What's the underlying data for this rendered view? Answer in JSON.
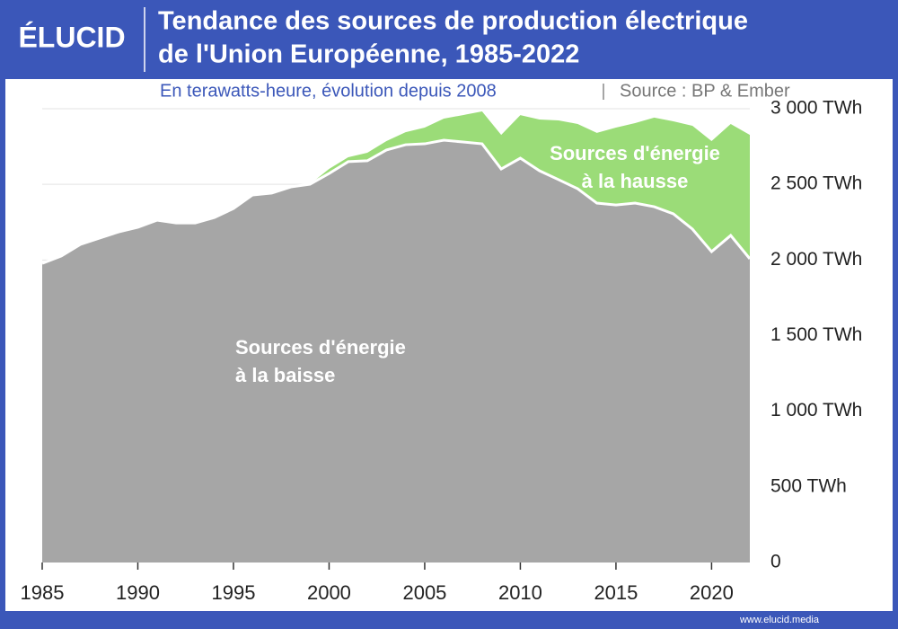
{
  "logo": "ÉLUCID",
  "footer": "www.elucid.media",
  "chart_data": {
    "type": "stacked-area",
    "title": [
      "Tendance des sources de production électrique",
      "de l'Union Européenne, 1985-2022"
    ],
    "subtitle": "En terawatts-heure, évolution depuis 2008",
    "source": "Source : BP & Ember",
    "annotations": [
      {
        "lines": [
          "Sources d'énergie",
          "à la hausse"
        ]
      },
      {
        "lines": [
          "Sources d'énergie",
          "à la baisse"
        ]
      }
    ],
    "x": [
      1985,
      1986,
      1987,
      1988,
      1989,
      1990,
      1991,
      1992,
      1993,
      1994,
      1995,
      1996,
      1997,
      1998,
      1999,
      2000,
      2001,
      2002,
      2003,
      2004,
      2005,
      2006,
      2007,
      2008,
      2009,
      2010,
      2011,
      2012,
      2013,
      2014,
      2015,
      2016,
      2017,
      2018,
      2019,
      2020,
      2021,
      2022
    ],
    "series": [
      {
        "color": "#a6a6a6",
        "values": [
          1978,
          2026,
          2103,
          2145,
          2186,
          2216,
          2263,
          2245,
          2245,
          2281,
          2340,
          2430,
          2442,
          2483,
          2501,
          2572,
          2650,
          2656,
          2727,
          2762,
          2768,
          2792,
          2780,
          2768,
          2602,
          2673,
          2590,
          2531,
          2471,
          2376,
          2364,
          2376,
          2352,
          2305,
          2204,
          2055,
          2162,
          2008
        ]
      },
      {
        "color": "#9bdc78",
        "values": [
          null,
          null,
          null,
          null,
          null,
          null,
          null,
          null,
          null,
          null,
          null,
          null,
          null,
          null,
          0,
          30,
          29,
          53,
          59,
          83,
          107,
          143,
          178,
          214,
          225,
          285,
          339,
          392,
          428,
          464,
          511,
          529,
          589,
          612,
          683,
          731,
          737,
          819
        ]
      }
    ],
    "xlim": [
      1985,
      2022
    ],
    "xticks": [
      1985,
      1990,
      1995,
      2000,
      2005,
      2010,
      2015,
      2020
    ],
    "ylim": [
      0,
      3000
    ],
    "yticks": [
      0,
      {
        "value": 500,
        "label": "500 TWh"
      },
      {
        "value": 1000,
        "label": "1 000 TWh"
      },
      {
        "value": 1500,
        "label": "1 500 TWh"
      },
      {
        "value": 2000,
        "label": "2 000 TWh"
      },
      {
        "value": 2500,
        "label": "2 500 TWh"
      },
      {
        "value": 3000,
        "label": "3 000 TWh"
      }
    ],
    "grid": true
  }
}
